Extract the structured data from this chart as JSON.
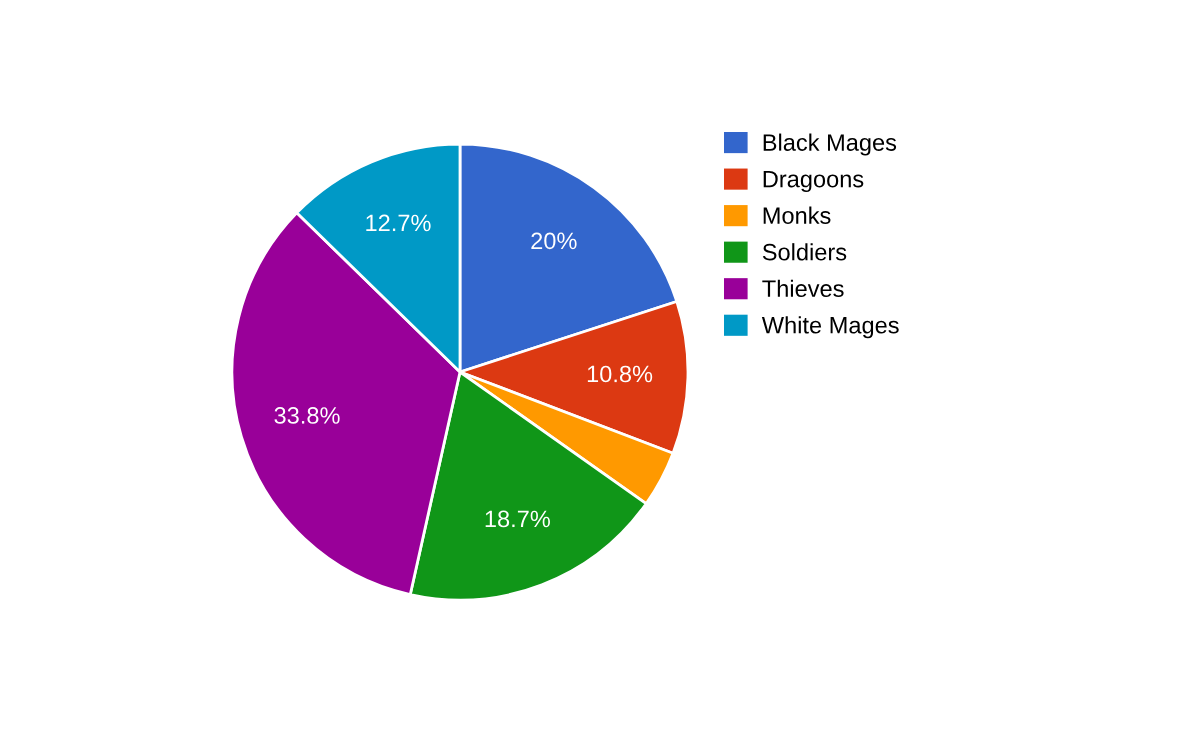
{
  "chart_data": {
    "type": "pie",
    "categories": [
      "Black Mages",
      "Dragoons",
      "Monks",
      "Soldiers",
      "Thieves",
      "White Mages"
    ],
    "values": [
      20,
      10.8,
      4.0,
      18.7,
      33.8,
      12.7
    ],
    "colors": [
      "#3366cc",
      "#dc3912",
      "#ff9900",
      "#109618",
      "#990099",
      "#0099c6"
    ],
    "value_labels": [
      "20%",
      "10.8%",
      null,
      "18.7%",
      "33.8%",
      "12.7%"
    ],
    "legend": "right"
  }
}
